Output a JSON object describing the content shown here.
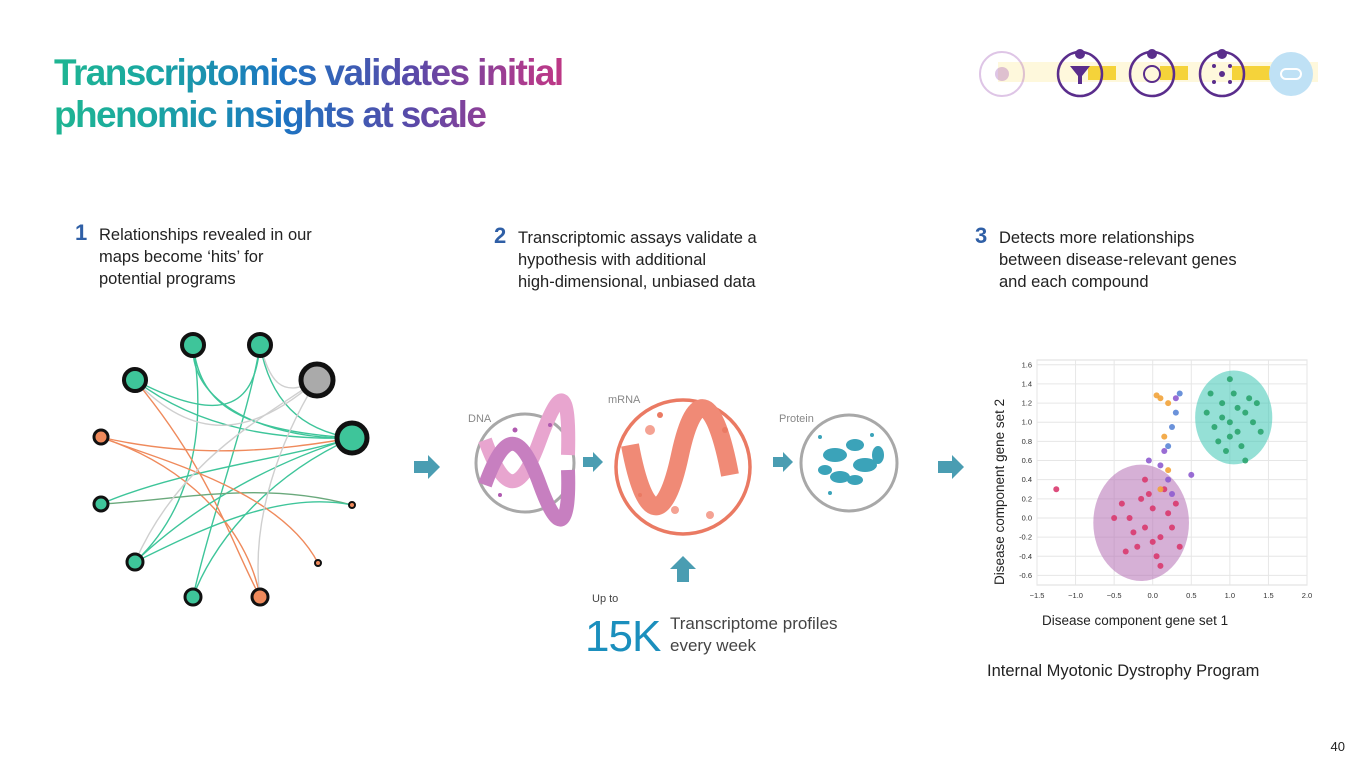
{
  "slide": {
    "title": "Transcriptomics validates initial phenomic insights at scale",
    "page_number": "40"
  },
  "steps": [
    {
      "number": "1",
      "text": "Relationships revealed in our\nmaps become ‘hits’ for\npotential programs"
    },
    {
      "number": "2",
      "text": "Transcriptomic assays validate a\nhypothesis with additional\nhigh-dimensional, unbiased data"
    },
    {
      "number": "3",
      "text": "Detects more relationships\nbetween disease-relevant genes\nand each compound"
    }
  ],
  "assay_diagram": {
    "dna_label": "DNA",
    "mrna_label": "mRNA",
    "protein_label": "Protein"
  },
  "stat": {
    "prefix": "Up to",
    "number": "15K",
    "text": "Transcriptome profiles\nevery week"
  },
  "pipeline_icons": [
    "flask-icon",
    "funnel-icon",
    "molecule-icon",
    "network-icon",
    "pill-icon"
  ],
  "network_graph": {
    "node_colors": {
      "teal": "#3ec59a",
      "orange": "#ef8a5c",
      "gray": "#aaaaaa"
    }
  },
  "chart_data": {
    "type": "scatter",
    "xlabel": "Disease component gene set 1",
    "ylabel": "Disease component gene set 2",
    "xlim": [
      -1.5,
      2.0
    ],
    "ylim": [
      -0.7,
      1.65
    ],
    "x_ticks": [
      "−1.5",
      "−1.0",
      "−0.5",
      "0.0",
      "0.5",
      "1.0",
      "1.5",
      "2.0"
    ],
    "y_ticks": [
      "1.6",
      "1.4",
      "1.2",
      "1.0",
      "0.8",
      "0.6",
      "0.4",
      "0.2",
      "0.0",
      "-0.2",
      "-0.4",
      "-0.6"
    ],
    "grid": true,
    "clusters": [
      {
        "color": "#3ec6b5",
        "center": [
          1.05,
          1.05
        ],
        "radius": 0.5
      },
      {
        "color": "#b56fb5",
        "center": [
          -0.15,
          -0.05
        ],
        "radius": 0.62
      }
    ],
    "series": [
      {
        "color": "#2aa46e",
        "points": [
          [
            1.0,
            1.0
          ],
          [
            0.9,
            1.2
          ],
          [
            1.1,
            0.9
          ],
          [
            1.2,
            1.1
          ],
          [
            0.8,
            0.95
          ],
          [
            1.05,
            1.3
          ],
          [
            1.3,
            1.0
          ],
          [
            0.95,
            0.7
          ],
          [
            1.15,
            0.75
          ],
          [
            1.25,
            1.25
          ],
          [
            0.7,
            1.1
          ],
          [
            1.0,
            1.45
          ],
          [
            1.4,
            0.9
          ],
          [
            0.85,
            0.8
          ],
          [
            1.1,
            1.15
          ],
          [
            1.2,
            0.6
          ],
          [
            0.9,
            1.05
          ],
          [
            1.35,
            1.2
          ],
          [
            1.0,
            0.85
          ],
          [
            0.75,
            1.3
          ]
        ]
      },
      {
        "color": "#d93a6e",
        "points": [
          [
            -0.1,
            -0.1
          ],
          [
            0.0,
            0.1
          ],
          [
            -0.3,
            0.0
          ],
          [
            0.1,
            -0.2
          ],
          [
            -0.2,
            -0.3
          ],
          [
            0.2,
            0.05
          ],
          [
            -0.4,
            0.15
          ],
          [
            0.05,
            -0.4
          ],
          [
            -0.05,
            0.25
          ],
          [
            0.25,
            -0.1
          ],
          [
            -0.25,
            -0.15
          ],
          [
            0.15,
            0.3
          ],
          [
            -0.35,
            -0.35
          ],
          [
            0.3,
            0.15
          ],
          [
            -0.15,
            0.2
          ],
          [
            0.0,
            -0.25
          ],
          [
            -0.5,
            0.0
          ],
          [
            0.35,
            -0.3
          ],
          [
            -0.1,
            0.4
          ],
          [
            0.1,
            -0.5
          ],
          [
            -1.25,
            0.3
          ]
        ]
      },
      {
        "color": "#f2a33a",
        "points": [
          [
            0.1,
            1.25
          ],
          [
            0.2,
            1.2
          ],
          [
            0.15,
            0.85
          ],
          [
            0.2,
            0.5
          ],
          [
            0.1,
            0.3
          ],
          [
            0.05,
            1.28
          ]
        ]
      },
      {
        "color": "#8e5ccf",
        "points": [
          [
            0.1,
            0.55
          ],
          [
            0.2,
            0.4
          ],
          [
            -0.05,
            0.6
          ],
          [
            0.3,
            1.25
          ],
          [
            0.5,
            0.45
          ],
          [
            0.15,
            0.7
          ],
          [
            0.25,
            0.25
          ]
        ]
      },
      {
        "color": "#5b86d6",
        "points": [
          [
            0.3,
            1.1
          ],
          [
            0.35,
            1.3
          ],
          [
            0.25,
            0.95
          ],
          [
            0.2,
            0.75
          ]
        ]
      }
    ]
  }
}
